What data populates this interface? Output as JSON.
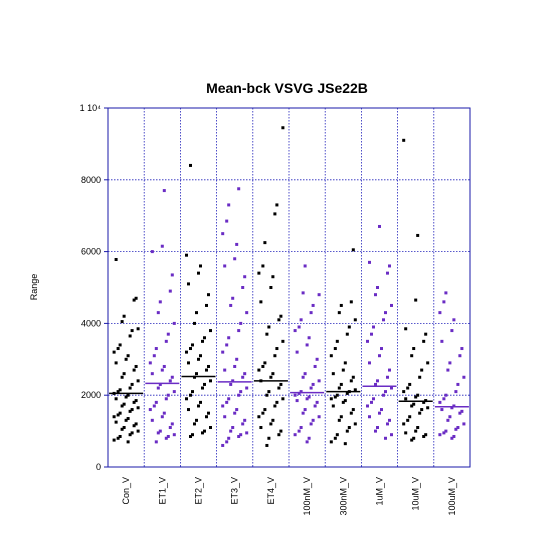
{
  "chart_data": {
    "type": "scatter",
    "title": "Mean-bck VSVG JSe22B",
    "xlabel": "",
    "ylabel": "Range",
    "ylim": [
      0,
      10000
    ],
    "yticks": [
      "0",
      "2000",
      "4000",
      "6000",
      "8000"
    ],
    "ytop_label": "1 10⁴",
    "grid": true,
    "colors": {
      "black": "#000000",
      "purple": "#6a2cc4",
      "grid": "#2222bb",
      "axis": "#1a1aaa"
    },
    "categories": [
      "Con_V",
      "ET1_V",
      "ET2_V",
      "ET3_V",
      "ET4_V",
      "100nM_V",
      "300nM_V",
      "1uM_V",
      "10uM_V",
      "100uM_V"
    ],
    "series": [
      {
        "category": "Con_V",
        "color": "black",
        "mean": 2050,
        "values": [
          5780,
          4700,
          4650,
          4200,
          4050,
          3850,
          3800,
          3650,
          3400,
          3300,
          3200,
          3100,
          3000,
          2900,
          2800,
          2700,
          2600,
          2500,
          2400,
          2300,
          2200,
          2150,
          2100,
          2050,
          2000,
          1950,
          1900,
          1850,
          1800,
          1750,
          1700,
          1650,
          1600,
          1550,
          1500,
          1450,
          1400,
          1350,
          1300,
          1250,
          1200,
          1150,
          1100,
          1050,
          1000,
          950,
          900,
          850,
          800,
          750,
          700
        ]
      },
      {
        "category": "ET1_V",
        "color": "purple",
        "mean": 2330,
        "values": [
          7700,
          6150,
          6000,
          5350,
          4900,
          4600,
          4300,
          4000,
          3700,
          3500,
          3300,
          3100,
          2900,
          2800,
          2700,
          2600,
          2500,
          2400,
          2300,
          2200,
          2100,
          2000,
          1900,
          1800,
          1700,
          1600,
          1500,
          1400,
          1300,
          1200,
          1100,
          1000,
          950,
          900,
          850,
          800,
          700
        ]
      },
      {
        "category": "ET2_V",
        "color": "black",
        "mean": 2520,
        "values": [
          8400,
          5900,
          5600,
          5400,
          5100,
          4800,
          4500,
          4300,
          4000,
          3800,
          3600,
          3500,
          3400,
          3300,
          3200,
          3100,
          3000,
          2900,
          2800,
          2700,
          2600,
          2500,
          2400,
          2300,
          2200,
          2100,
          2000,
          1900,
          1800,
          1700,
          1600,
          1500,
          1400,
          1300,
          1200,
          1100,
          1000,
          950,
          900,
          850
        ]
      },
      {
        "category": "ET3_V",
        "color": "purple",
        "mean": 2370,
        "values": [
          7750,
          7300,
          6850,
          6500,
          6200,
          5800,
          5600,
          5300,
          5000,
          4700,
          4500,
          4300,
          4000,
          3800,
          3600,
          3400,
          3200,
          3000,
          2800,
          2700,
          2600,
          2500,
          2400,
          2300,
          2200,
          2100,
          2000,
          1900,
          1800,
          1700,
          1600,
          1500,
          1400,
          1300,
          1200,
          1100,
          1000,
          950,
          900,
          850,
          800,
          700,
          600
        ]
      },
      {
        "category": "ET4_V",
        "color": "black",
        "mean": 2400,
        "values": [
          9450,
          7300,
          7050,
          6250,
          5600,
          5400,
          5300,
          5000,
          4600,
          4200,
          4100,
          3900,
          3700,
          3500,
          3300,
          3100,
          2900,
          2800,
          2700,
          2600,
          2500,
          2400,
          2300,
          2200,
          2100,
          2000,
          1900,
          1800,
          1700,
          1600,
          1500,
          1400,
          1300,
          1200,
          1100,
          1000,
          900,
          800,
          600
        ]
      },
      {
        "category": "100nM_V",
        "color": "purple",
        "mean": 2070,
        "values": [
          5600,
          4850,
          4800,
          4500,
          4300,
          4100,
          3900,
          3800,
          3600,
          3400,
          3200,
          3000,
          2800,
          2600,
          2500,
          2400,
          2300,
          2200,
          2100,
          2050,
          2000,
          1950,
          1900,
          1850,
          1800,
          1700,
          1600,
          1500,
          1400,
          1300,
          1200,
          1100,
          1000,
          900,
          800,
          700
        ]
      },
      {
        "category": "300nM_V",
        "color": "black",
        "mean": 2100,
        "values": [
          6050,
          4600,
          4500,
          4300,
          4100,
          3900,
          3700,
          3500,
          3300,
          3100,
          2900,
          2700,
          2600,
          2500,
          2400,
          2300,
          2200,
          2150,
          2100,
          2050,
          2000,
          1950,
          1900,
          1850,
          1800,
          1700,
          1600,
          1500,
          1400,
          1300,
          1200,
          1100,
          1000,
          900,
          800,
          700,
          650
        ]
      },
      {
        "category": "1uM_V",
        "color": "purple",
        "mean": 2250,
        "values": [
          6700,
          5700,
          5600,
          5400,
          5000,
          4800,
          4500,
          4300,
          4100,
          3900,
          3700,
          3500,
          3300,
          3100,
          2900,
          2700,
          2500,
          2400,
          2300,
          2200,
          2100,
          2000,
          1900,
          1800,
          1700,
          1600,
          1500,
          1400,
          1300,
          1200,
          1100,
          1000,
          900,
          800
        ]
      },
      {
        "category": "10uM_V",
        "color": "black",
        "mean": 1830,
        "values": [
          9100,
          6450,
          4650,
          3850,
          3700,
          3500,
          3300,
          3100,
          2900,
          2700,
          2500,
          2300,
          2200,
          2100,
          2000,
          1950,
          1900,
          1850,
          1800,
          1750,
          1700,
          1650,
          1600,
          1500,
          1400,
          1300,
          1200,
          1100,
          1000,
          950,
          900,
          850,
          800,
          750
        ]
      },
      {
        "category": "100uM_V",
        "color": "purple",
        "mean": 1680,
        "values": [
          4850,
          4600,
          4300,
          4100,
          3800,
          3500,
          3300,
          3100,
          2900,
          2700,
          2500,
          2300,
          2100,
          2000,
          1900,
          1800,
          1700,
          1650,
          1600,
          1550,
          1500,
          1400,
          1300,
          1200,
          1100,
          1050,
          1000,
          950,
          900,
          850,
          800
        ]
      }
    ]
  }
}
